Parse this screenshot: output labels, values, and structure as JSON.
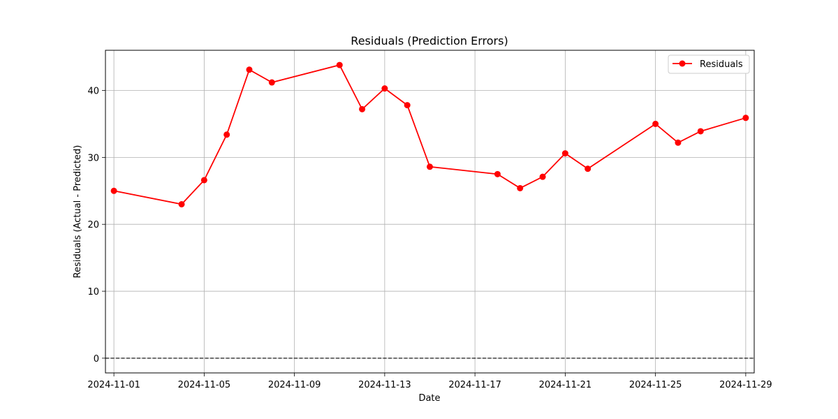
{
  "chart_data": {
    "type": "line",
    "title": "Residuals (Prediction Errors)",
    "xlabel": "Date",
    "ylabel": "Residuals (Actual - Predicted)",
    "x_tick_labels": [
      "2024-11-01",
      "2024-11-05",
      "2024-11-09",
      "2024-11-13",
      "2024-11-17",
      "2024-11-21",
      "2024-11-25",
      "2024-11-29"
    ],
    "x_ticks": [
      "2024-11-01",
      "2024-11-05",
      "2024-11-09",
      "2024-11-13",
      "2024-11-17",
      "2024-11-21",
      "2024-11-25",
      "2024-11-29"
    ],
    "y_ticks": [
      0,
      10,
      20,
      30,
      40
    ],
    "ylim": [
      -2.2,
      46
    ],
    "xlim": [
      "2024-10-31 15:00",
      "2024-11-29 09:00"
    ],
    "grid": true,
    "legend_position": "top-right",
    "series": [
      {
        "name": "Residuals",
        "color": "#ff0000",
        "marker": "circle",
        "x": [
          "2024-11-01",
          "2024-11-04",
          "2024-11-05",
          "2024-11-06",
          "2024-11-07",
          "2024-11-08",
          "2024-11-11",
          "2024-11-12",
          "2024-11-13",
          "2024-11-14",
          "2024-11-15",
          "2024-11-18",
          "2024-11-19",
          "2024-11-20",
          "2024-11-21",
          "2024-11-22",
          "2024-11-25",
          "2024-11-26",
          "2024-11-27",
          "2024-11-29"
        ],
        "values": [
          25.0,
          23.0,
          26.6,
          33.4,
          43.1,
          41.2,
          43.8,
          37.2,
          40.3,
          37.8,
          28.6,
          27.5,
          25.4,
          27.1,
          30.6,
          28.3,
          35.0,
          32.2,
          33.9,
          35.9
        ]
      }
    ],
    "reference_line": {
      "y": 0,
      "style": "dashed",
      "color": "#000000"
    }
  }
}
